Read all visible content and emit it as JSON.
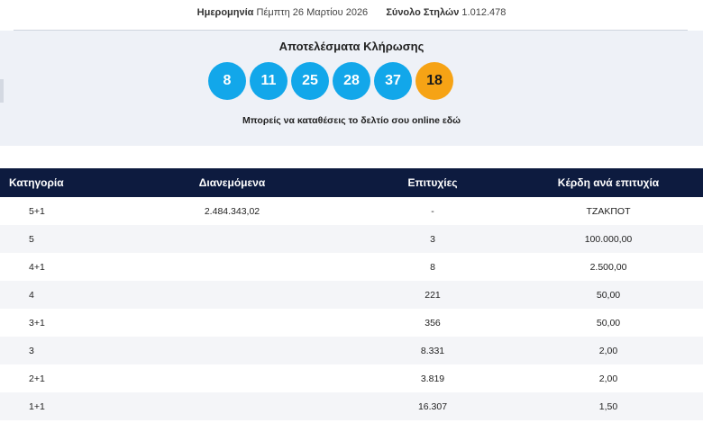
{
  "header": {
    "date_label": "Ημερομηνία",
    "date_value": "Πέμπτη 26 Μαρτίου 2026",
    "columns_label": "Σύνολο Στηλών",
    "columns_value": "1.012.478"
  },
  "draw": {
    "title": "Αποτελέσματα Κλήρωσης",
    "numbers": [
      "8",
      "11",
      "25",
      "28",
      "37"
    ],
    "joker": "18",
    "online_link": "Μπορείς να καταθέσεις το δελτίο σου online εδώ",
    "colors": {
      "number_ball": "#12a7ea",
      "joker_ball": "#f6a315",
      "panel": "#eef1f7"
    }
  },
  "table": {
    "headers": {
      "category": "Κατηγορία",
      "distributed": "Διανεμόμενα",
      "winners": "Επιτυχίες",
      "prize": "Κέρδη ανά επιτυχία"
    },
    "header_color": "#0d1b3f",
    "rows": [
      {
        "category": "5+1",
        "distributed": "2.484.343,02",
        "winners": "-",
        "prize": "ΤΖΑΚΠΟΤ"
      },
      {
        "category": "5",
        "distributed": "",
        "winners": "3",
        "prize": "100.000,00"
      },
      {
        "category": "4+1",
        "distributed": "",
        "winners": "8",
        "prize": "2.500,00"
      },
      {
        "category": "4",
        "distributed": "",
        "winners": "221",
        "prize": "50,00"
      },
      {
        "category": "3+1",
        "distributed": "",
        "winners": "356",
        "prize": "50,00"
      },
      {
        "category": "3",
        "distributed": "",
        "winners": "8.331",
        "prize": "2,00"
      },
      {
        "category": "2+1",
        "distributed": "",
        "winners": "3.819",
        "prize": "2,00"
      },
      {
        "category": "1+1",
        "distributed": "",
        "winners": "16.307",
        "prize": "1,50"
      }
    ]
  }
}
